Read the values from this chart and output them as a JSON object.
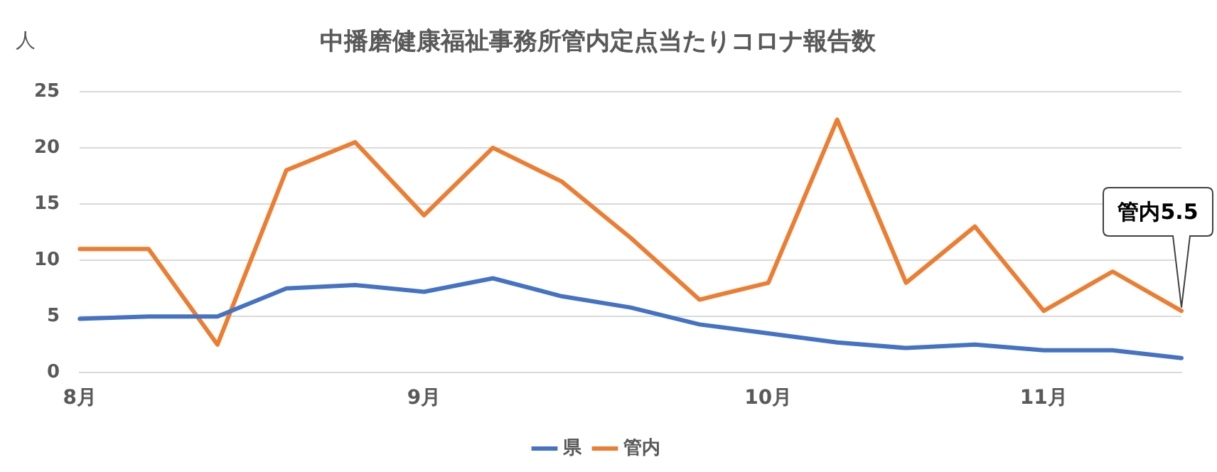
{
  "chart_data": {
    "type": "line",
    "title": "中播磨健康福祉事務所管内定点当たりコロナ報告数",
    "ylabel": "人",
    "categories": [
      "8月",
      null,
      null,
      null,
      null,
      "9月",
      null,
      null,
      null,
      null,
      "10月",
      null,
      null,
      null,
      "11月",
      null,
      null
    ],
    "series": [
      {
        "name": "県",
        "color": "#4472c4",
        "values": [
          4.8,
          5,
          5,
          7.5,
          7.8,
          7.2,
          8.4,
          6.8,
          5.8,
          4.3,
          3.5,
          2.7,
          2.2,
          2.5,
          2,
          2,
          1.3
        ]
      },
      {
        "name": "管内",
        "color": "#ed7d31",
        "values": [
          11,
          11,
          2.5,
          18,
          20.5,
          14,
          20,
          17,
          12,
          6.5,
          8,
          22.5,
          8,
          13,
          5.5,
          9,
          5.5
        ]
      }
    ],
    "ylim": [
      0,
      25
    ],
    "yticks": [
      0,
      5,
      10,
      15,
      20,
      25
    ],
    "grid": "y",
    "legend": "bottom",
    "marker": "none",
    "line_style": "solid",
    "annotations": [
      "管内5.5"
    ]
  }
}
